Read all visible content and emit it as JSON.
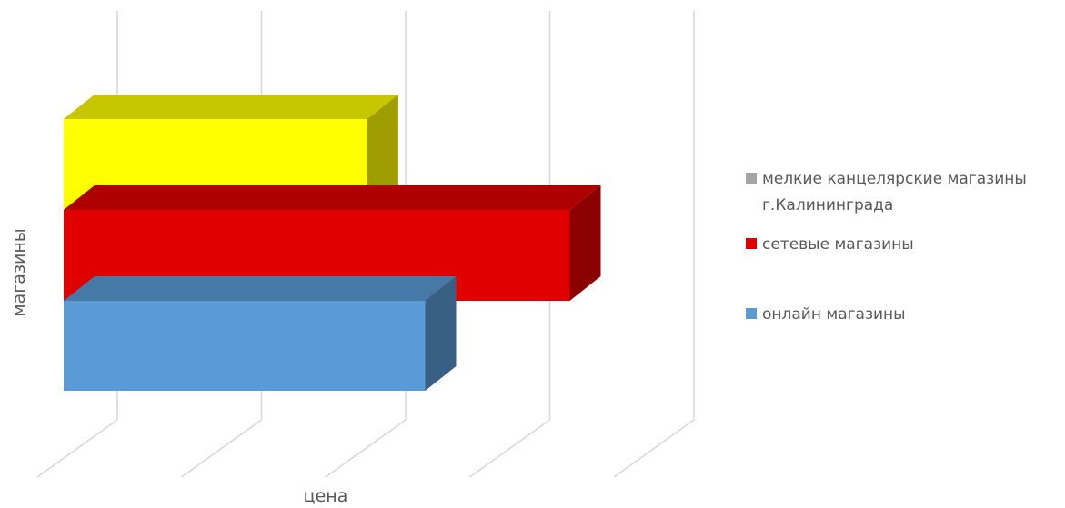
{
  "chart_data": {
    "type": "bar",
    "orientation": "horizontal",
    "style": "3d",
    "title": "",
    "xlabel": "цена",
    "ylabel": "магазины",
    "xlim": [
      0,
      1
    ],
    "grid": true,
    "legend_position": "right",
    "series": [
      {
        "name": "онлайн магазины",
        "value": 0.5,
        "color": "#5B9BD5"
      },
      {
        "name": "сетевые магазины",
        "value": 0.7,
        "color": "#E00000"
      },
      {
        "name": "мелкие канцелярские магазины г.Калининграда",
        "value": 0.42,
        "color": "#FFFF00",
        "legend_color": "#A5A5A5"
      }
    ],
    "legend": [
      {
        "lines": [
          "мелкие канцелярские магазины",
          "г.Калининграда"
        ],
        "color": "#A5A5A5"
      },
      {
        "lines": [
          "сетевые магазины"
        ],
        "color": "#E00000"
      },
      {
        "lines": [
          "онлайн магазины"
        ],
        "color": "#5B9BD5"
      }
    ]
  }
}
